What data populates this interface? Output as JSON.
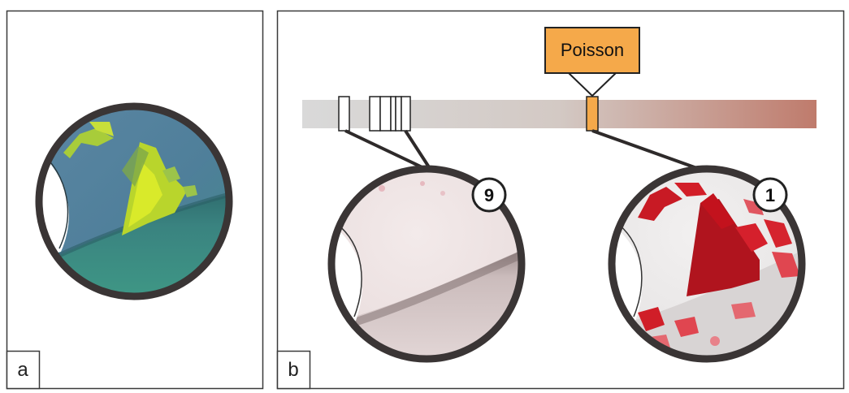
{
  "panels": [
    {
      "label": "a"
    },
    {
      "label": "b"
    }
  ],
  "callout": {
    "text": "Poisson",
    "fill": "#f5a94a"
  },
  "badges": {
    "left": "9",
    "right": "1"
  },
  "colors": {
    "bar_start": "#d9d9d9",
    "bar_mid": "#d2c6c0",
    "bar_end": "#bf7b6c",
    "panel_a_background": "#4e7fa0",
    "panel_a_highlight": "#d7e82a",
    "red_mark": "#c0141f"
  }
}
